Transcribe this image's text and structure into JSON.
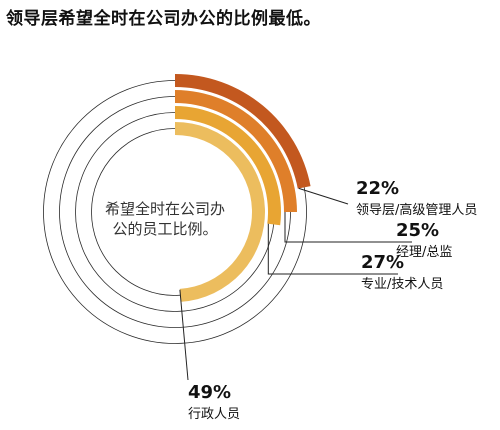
{
  "page": {
    "title": "领导层希望全时在公司办公的比例最低。"
  },
  "chart_data": {
    "type": "radial-bar",
    "center_label": [
      "希望全时在公司办",
      "公的员工比例。"
    ],
    "series": [
      {
        "name": "领导层/高级管理人员",
        "value": 22,
        "value_label": "22%",
        "color": "#c3581f"
      },
      {
        "name": "经理/总监",
        "value": 25,
        "value_label": "25%",
        "color": "#df7f2a"
      },
      {
        "name": "专业/技术人员",
        "value": 27,
        "value_label": "27%",
        "color": "#e8a533"
      },
      {
        "name": "行政人员",
        "value": 49,
        "value_label": "49%",
        "color": "#ecbd5e"
      }
    ]
  }
}
